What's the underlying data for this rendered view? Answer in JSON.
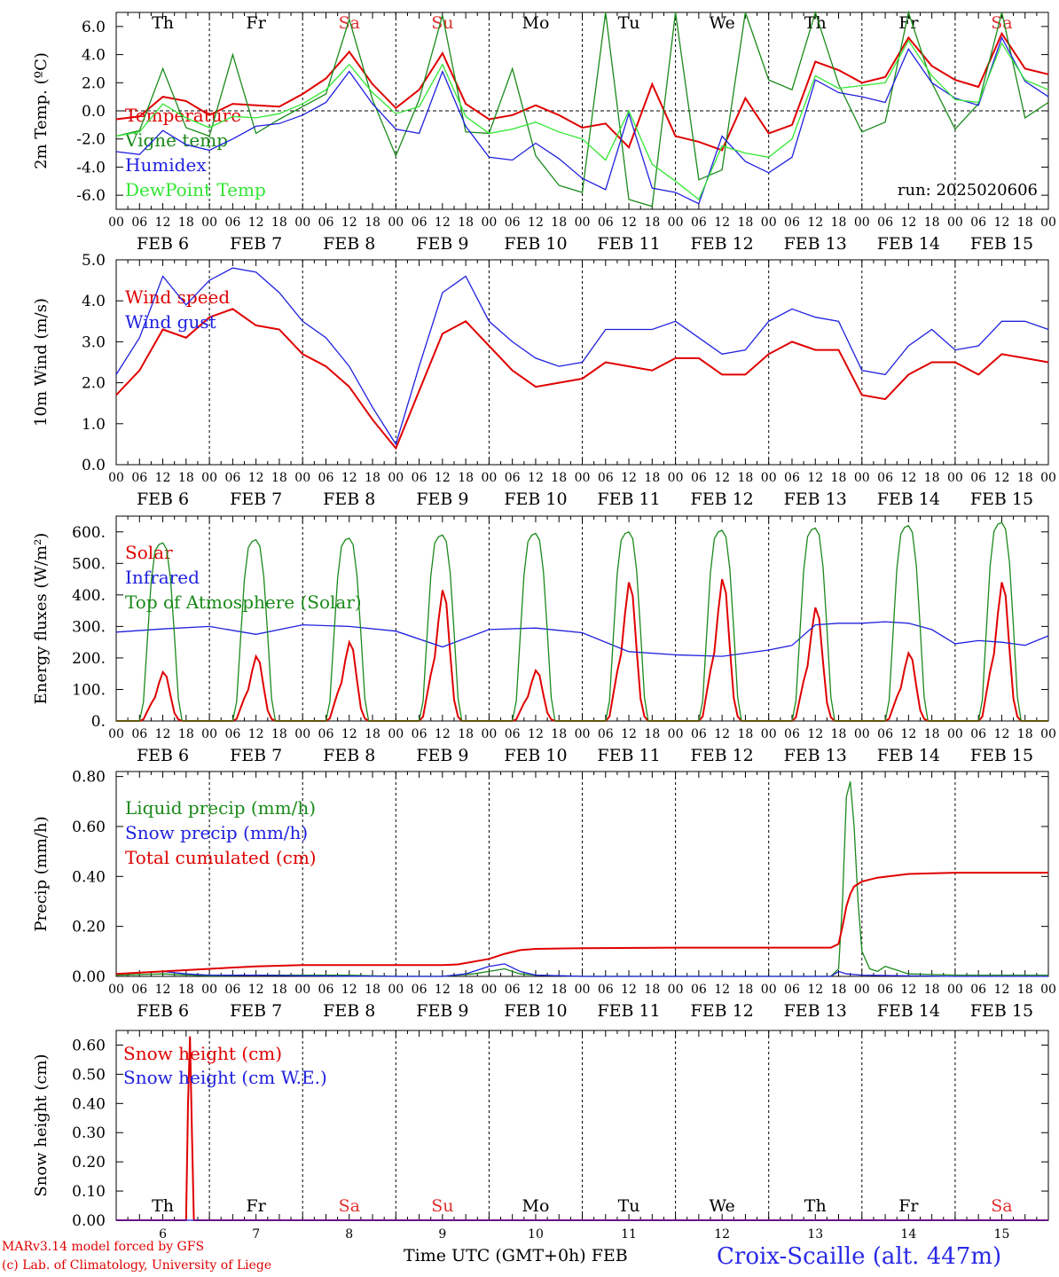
{
  "colors": {
    "red": "#e00000",
    "green": "#1a8a1a",
    "blue": "#2020e0",
    "lightgreen": "#33e633",
    "weekday": "#000000",
    "weekend": "#e03030"
  },
  "days": {
    "weekdays": [
      "Th",
      "Fr",
      "Sa",
      "Su",
      "Mo",
      "Tu",
      "We",
      "Th",
      "Fr",
      "Sa"
    ],
    "weekend_flags": [
      false,
      false,
      true,
      true,
      false,
      false,
      false,
      false,
      false,
      true
    ],
    "dates": [
      "FEB 6",
      "FEB 7",
      "FEB 8",
      "FEB 9",
      "FEB 10",
      "FEB 11",
      "FEB 12",
      "FEB 13",
      "FEB 14",
      "FEB 15"
    ],
    "day_numbers": [
      "6",
      "7",
      "8",
      "9",
      "10",
      "11",
      "12",
      "13",
      "14",
      "15"
    ],
    "hour_labels": [
      "00",
      "06",
      "12",
      "18"
    ],
    "end_hour_label": "00"
  },
  "footer": {
    "credit_line1": "MARv3.14 model forced by GFS",
    "credit_line2": "(c) Lab. of Climatology, University of Liege",
    "xaxis_title": "Time UTC (GMT+0h) FEB",
    "station": "Croix-Scaille (alt. 447m)"
  },
  "chart_data": [
    {
      "type": "line",
      "ylabel": "2m Temp. (ºC)",
      "ylim": [
        -7,
        7
      ],
      "yticks": [
        "-6.0",
        "-4.0",
        "-2.0",
        "0.0",
        "2.0",
        "4.0",
        "6.0"
      ],
      "ytick_values": [
        -6,
        -4,
        -2,
        0,
        2,
        4,
        6
      ],
      "zero_line": true,
      "annotation": "run: 2025020606",
      "legend_placement": "left",
      "x_unit": "hours since FEB 6 00 UTC",
      "series": [
        {
          "name": "Temperature",
          "color": "red",
          "x": [
            0,
            6,
            12,
            18,
            24,
            30,
            36,
            42,
            48,
            54,
            60,
            66,
            72,
            78,
            84,
            90,
            96,
            102,
            108,
            114,
            120,
            126,
            132,
            138,
            144,
            150,
            156,
            162,
            168,
            174,
            180,
            186,
            192,
            198,
            204,
            210,
            216,
            222,
            228,
            234,
            240
          ],
          "values": [
            -0.6,
            -0.4,
            1.0,
            0.7,
            -0.3,
            0.5,
            0.4,
            0.3,
            1.2,
            2.3,
            4.2,
            1.9,
            0.2,
            1.5,
            4.1,
            0.5,
            -0.6,
            -0.3,
            0.4,
            -0.3,
            -1.2,
            -0.9,
            -2.6,
            1.9,
            -1.8,
            -2.2,
            -2.8,
            0.9,
            -1.6,
            -1.0,
            3.5,
            2.9,
            2.0,
            2.4,
            5.2,
            3.2,
            2.2,
            1.7,
            5.5,
            3.0,
            2.6
          ]
        },
        {
          "name": "Vigne temp",
          "color": "green",
          "x": [
            0,
            6,
            12,
            18,
            24,
            30,
            36,
            42,
            48,
            54,
            60,
            66,
            72,
            78,
            84,
            90,
            96,
            102,
            108,
            114,
            120,
            126,
            132,
            138,
            144,
            150,
            156,
            162,
            168,
            174,
            180,
            186,
            192,
            198,
            204,
            210,
            216,
            222,
            228,
            234,
            240
          ],
          "values": [
            -1.8,
            -1.4,
            3.0,
            -1.2,
            -1.8,
            4.0,
            -1.6,
            -0.6,
            0.3,
            1.2,
            6.5,
            0.8,
            -3.2,
            0.8,
            6.8,
            -1.5,
            -1.6,
            3.0,
            -3.2,
            -5.3,
            -5.8,
            7.0,
            -6.3,
            -6.8,
            7.0,
            -4.9,
            -4.2,
            7.0,
            2.2,
            1.5,
            8.0,
            1.9,
            -1.5,
            -0.8,
            8.5,
            2.0,
            -1.3,
            0.5,
            8.0,
            -0.5,
            0.6
          ]
        },
        {
          "name": "Humidex",
          "color": "blue",
          "x": [
            0,
            6,
            12,
            18,
            24,
            30,
            36,
            42,
            48,
            54,
            60,
            66,
            72,
            78,
            84,
            90,
            96,
            102,
            108,
            114,
            120,
            126,
            132,
            138,
            144,
            150,
            156,
            162,
            168,
            174,
            180,
            186,
            192,
            198,
            204,
            210,
            216,
            222,
            228,
            234,
            240
          ],
          "values": [
            -2.9,
            -3.1,
            -1.4,
            -2.4,
            -2.8,
            -2.0,
            -1.1,
            -0.9,
            -0.3,
            0.6,
            2.8,
            0.5,
            -1.3,
            -1.6,
            2.8,
            -1.1,
            -3.3,
            -3.5,
            -2.3,
            -3.4,
            -4.8,
            -5.6,
            -0.2,
            -5.5,
            -5.8,
            -6.6,
            -1.8,
            -3.6,
            -4.4,
            -3.3,
            2.2,
            1.3,
            1.0,
            0.6,
            4.4,
            2.0,
            0.9,
            0.4,
            5.2,
            2.1,
            1.0
          ]
        },
        {
          "name": "DewPoint Temp",
          "color": "lightgreen",
          "x": [
            0,
            6,
            12,
            18,
            24,
            30,
            36,
            42,
            48,
            54,
            60,
            66,
            72,
            78,
            84,
            90,
            96,
            102,
            108,
            114,
            120,
            126,
            132,
            138,
            144,
            150,
            156,
            162,
            168,
            174,
            180,
            186,
            192,
            198,
            204,
            210,
            216,
            222,
            228,
            234,
            240
          ],
          "values": [
            -1.8,
            -1.5,
            0.5,
            -0.5,
            -1.2,
            -0.4,
            -0.5,
            -0.2,
            0.5,
            1.5,
            3.3,
            1.3,
            -0.2,
            0.3,
            3.3,
            -0.4,
            -1.6,
            -1.3,
            -0.8,
            -1.5,
            -2.0,
            -3.5,
            0.0,
            -3.8,
            -5.0,
            -6.3,
            -2.5,
            -3.0,
            -3.3,
            -2.0,
            2.5,
            1.6,
            1.8,
            2.0,
            5.0,
            2.5,
            0.8,
            0.6,
            4.8,
            2.2,
            1.5
          ]
        }
      ]
    },
    {
      "type": "line",
      "ylabel": "10m Wind (m/s)",
      "ylim": [
        0,
        5
      ],
      "yticks": [
        "0.0",
        "1.0",
        "2.0",
        "3.0",
        "4.0",
        "5.0"
      ],
      "ytick_values": [
        0,
        1,
        2,
        3,
        4,
        5
      ],
      "legend_placement": "left",
      "x_unit": "hours since FEB 6 00 UTC",
      "series": [
        {
          "name": "Wind speed",
          "color": "red",
          "x": [
            0,
            6,
            12,
            18,
            24,
            30,
            36,
            42,
            48,
            54,
            60,
            66,
            72,
            78,
            84,
            90,
            96,
            102,
            108,
            114,
            120,
            126,
            132,
            138,
            144,
            150,
            156,
            162,
            168,
            174,
            180,
            186,
            192,
            198,
            204,
            210,
            216,
            222,
            228,
            234,
            240
          ],
          "values": [
            1.7,
            2.3,
            3.3,
            3.1,
            3.6,
            3.8,
            3.4,
            3.3,
            2.7,
            2.4,
            1.9,
            1.1,
            0.4,
            1.8,
            3.2,
            3.5,
            2.9,
            2.3,
            1.9,
            2.0,
            2.1,
            2.5,
            2.4,
            2.3,
            2.6,
            2.6,
            2.2,
            2.2,
            2.7,
            3.0,
            2.8,
            2.8,
            1.7,
            1.6,
            2.2,
            2.5,
            2.5,
            2.2,
            2.7,
            2.6,
            2.5
          ]
        },
        {
          "name": "Wind gust",
          "color": "blue",
          "x": [
            0,
            6,
            12,
            18,
            24,
            30,
            36,
            42,
            48,
            54,
            60,
            66,
            72,
            78,
            84,
            90,
            96,
            102,
            108,
            114,
            120,
            126,
            132,
            138,
            144,
            150,
            156,
            162,
            168,
            174,
            180,
            186,
            192,
            198,
            204,
            210,
            216,
            222,
            228,
            234,
            240
          ],
          "values": [
            2.2,
            3.1,
            4.6,
            3.9,
            4.5,
            4.8,
            4.7,
            4.2,
            3.5,
            3.1,
            2.4,
            1.4,
            0.5,
            2.4,
            4.2,
            4.6,
            3.5,
            3.0,
            2.6,
            2.4,
            2.5,
            3.3,
            3.3,
            3.3,
            3.5,
            3.1,
            2.7,
            2.8,
            3.5,
            3.8,
            3.6,
            3.5,
            2.3,
            2.2,
            2.9,
            3.3,
            2.8,
            2.9,
            3.5,
            3.5,
            3.3
          ]
        }
      ]
    },
    {
      "type": "line",
      "ylabel": "Energy fluxes (W/m²)",
      "ylim": [
        0,
        650
      ],
      "yticks": [
        "0.",
        "100.",
        "200.",
        "300.",
        "400.",
        "500.",
        "600."
      ],
      "ytick_values": [
        0,
        100,
        200,
        300,
        400,
        500,
        600
      ],
      "legend_placement": "left",
      "x_unit": "hours since FEB 6 00 UTC",
      "series": [
        {
          "name": "Solar",
          "color": "red",
          "x": [
            0,
            6,
            7,
            8,
            9,
            10,
            11,
            12,
            13,
            14,
            15,
            16,
            17,
            18,
            24
          ],
          "values": [
            0,
            0,
            5,
            30,
            55,
            75,
            120,
            155,
            140,
            80,
            25,
            5,
            0,
            0,
            0
          ],
          "repeat_daily": true,
          "daily_peaks": [
            155,
            205,
            250,
            415,
            160,
            440,
            450,
            360,
            215,
            440
          ]
        },
        {
          "name": "Infrared",
          "color": "blue",
          "x": [
            0,
            12,
            24,
            36,
            48,
            60,
            72,
            84,
            96,
            108,
            120,
            132,
            144,
            156,
            168,
            174,
            180,
            186,
            192,
            198,
            204,
            210,
            216,
            222,
            228,
            234,
            240
          ],
          "values": [
            282,
            292,
            300,
            275,
            305,
            300,
            285,
            235,
            290,
            295,
            280,
            220,
            210,
            205,
            225,
            240,
            305,
            310,
            310,
            315,
            310,
            290,
            245,
            255,
            250,
            240,
            270
          ]
        },
        {
          "name": "Top of Atmosphere (Solar)",
          "color": "green",
          "x": [
            0,
            6,
            7,
            8,
            9,
            10,
            11,
            12,
            13,
            14,
            15,
            16,
            17,
            18,
            24
          ],
          "values": [
            0,
            0,
            60,
            250,
            440,
            540,
            560,
            565,
            545,
            450,
            270,
            70,
            0,
            0,
            0
          ],
          "repeat_daily": true,
          "daily_peaks": [
            565,
            575,
            580,
            590,
            595,
            600,
            605,
            612,
            620,
            630
          ]
        }
      ]
    },
    {
      "type": "line",
      "ylabel": "Precip (mm/h)",
      "ylim": [
        0,
        0.82
      ],
      "yticks": [
        "0.00",
        "0.20",
        "0.40",
        "0.60",
        "0.80"
      ],
      "ytick_values": [
        0,
        0.2,
        0.4,
        0.6,
        0.8
      ],
      "legend_placement": "left",
      "x_unit": "hours since FEB 6 00 UTC",
      "series": [
        {
          "name": "Liquid precip (mm/h)",
          "color": "green",
          "x": [
            0,
            12,
            24,
            36,
            48,
            60,
            72,
            84,
            92,
            96,
            100,
            104,
            108,
            120,
            132,
            144,
            156,
            168,
            184,
            186,
            187,
            188,
            189,
            190,
            191,
            192,
            194,
            196,
            198,
            204,
            216,
            240
          ],
          "values": [
            0.005,
            0.01,
            0.002,
            0.005,
            0.005,
            0.005,
            0.0,
            0.0,
            0.01,
            0.02,
            0.03,
            0.01,
            0.005,
            0.0,
            0.0,
            0.0,
            0.0,
            0.0,
            0.0,
            0.03,
            0.3,
            0.72,
            0.78,
            0.6,
            0.3,
            0.1,
            0.03,
            0.02,
            0.04,
            0.01,
            0.005,
            0.005
          ]
        },
        {
          "name": "Snow precip (mm/h)",
          "color": "blue",
          "x": [
            0,
            12,
            18,
            24,
            36,
            48,
            72,
            84,
            90,
            96,
            100,
            104,
            108,
            120,
            184,
            186,
            188,
            192,
            204,
            216,
            240
          ],
          "values": [
            0.01,
            0.02,
            0.01,
            0.005,
            0.005,
            0.002,
            0.0,
            0.0,
            0.01,
            0.04,
            0.05,
            0.02,
            0.005,
            0.0,
            0.0,
            0.02,
            0.01,
            0.005,
            0.002,
            0.0,
            0.0
          ]
        },
        {
          "name": "Total cumulated (cm)",
          "color": "red",
          "x": [
            0,
            12,
            24,
            36,
            48,
            60,
            72,
            84,
            88,
            96,
            100,
            104,
            108,
            120,
            144,
            168,
            184,
            186,
            187,
            188,
            189,
            190,
            192,
            196,
            204,
            216,
            240
          ],
          "values": [
            0.01,
            0.02,
            0.03,
            0.04,
            0.045,
            0.045,
            0.045,
            0.045,
            0.048,
            0.07,
            0.09,
            0.105,
            0.11,
            0.113,
            0.115,
            0.115,
            0.115,
            0.13,
            0.2,
            0.28,
            0.33,
            0.36,
            0.38,
            0.395,
            0.41,
            0.415,
            0.415
          ]
        }
      ]
    },
    {
      "type": "line",
      "ylabel": "Snow height (cm)",
      "ylim": [
        0,
        0.65
      ],
      "yticks": [
        "0.00",
        "0.10",
        "0.20",
        "0.30",
        "0.40",
        "0.50",
        "0.60"
      ],
      "ytick_values": [
        0,
        0.1,
        0.2,
        0.3,
        0.4,
        0.5,
        0.6
      ],
      "legend_placement": "left",
      "x_unit": "hours since FEB 6 00 UTC",
      "series": [
        {
          "name": "Snow height (cm)",
          "color": "red",
          "x": [
            0,
            18,
            18.5,
            19,
            19.5,
            20,
            240
          ],
          "values": [
            0,
            0,
            0.4,
            0.63,
            0.3,
            0,
            0
          ]
        },
        {
          "name": "Snow height (cm W.E.)",
          "color": "blue",
          "x": [
            0,
            240
          ],
          "values": [
            0,
            0
          ]
        }
      ]
    }
  ]
}
